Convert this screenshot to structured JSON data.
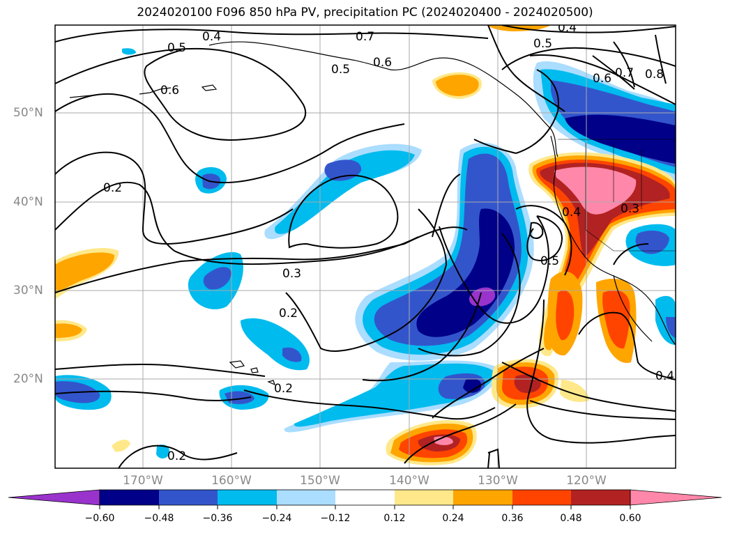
{
  "title": "2024020100 F096 850 hPa PV, precipitation PC (2024020400 - 2024020500)",
  "map": {
    "lat_labels": [
      "50°N",
      "40°N",
      "30°N",
      "20°N"
    ],
    "lon_labels": [
      "170°W",
      "160°W",
      "150°W",
      "140°W",
      "130°W",
      "120°W"
    ],
    "contour_labels": [
      "0.4",
      "0.5",
      "0.6",
      "0.7",
      "0.5",
      "0.6",
      "0.4",
      "0.5",
      "0.6",
      "0.7",
      "0.8",
      "0.2",
      "0.3",
      "0.2",
      "0.2",
      "0.2",
      "0.5",
      "0.4",
      "0.3",
      "0.4"
    ]
  },
  "colorbar": {
    "tick_labels": [
      "−0.60",
      "−0.48",
      "−0.36",
      "−0.24",
      "−0.12",
      "0.12",
      "0.24",
      "0.36",
      "0.48",
      "0.60"
    ],
    "colors": [
      "#9933cc",
      "#000088",
      "#3355cc",
      "#00bbee",
      "#aaddff",
      "#ffffff",
      "#ffe88a",
      "#ffa500",
      "#ff4400",
      "#b22222",
      "#ff88aa"
    ]
  }
}
